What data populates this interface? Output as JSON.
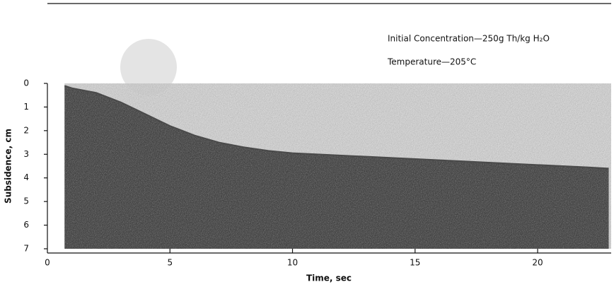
{
  "chart_data": {
    "type": "area",
    "annotations": [
      "Initial Concentration—250g Th/kg H₂O",
      "Temperature—205°C"
    ],
    "xlabel": "Time, sec",
    "ylabel": "Subsidence, cm",
    "x": [
      0.7,
      1,
      2,
      3,
      4,
      5,
      6,
      7,
      8,
      9,
      10,
      12,
      14,
      16,
      18,
      20,
      22,
      22.9
    ],
    "series": [
      {
        "color": "#4a4a4a",
        "values": [
          0.1,
          0.2,
          0.4,
          0.8,
          1.3,
          1.8,
          2.2,
          2.5,
          2.7,
          2.85,
          2.95,
          3.05,
          3.15,
          3.25,
          3.35,
          3.45,
          3.55,
          3.6
        ]
      }
    ],
    "xlim": [
      0,
      23
    ],
    "xticks": [
      0,
      5,
      10,
      15,
      20
    ],
    "ylim": [
      0,
      7
    ],
    "yticks": [
      0,
      1,
      2,
      3,
      4,
      5,
      6,
      7
    ],
    "y_inverted": true
  }
}
